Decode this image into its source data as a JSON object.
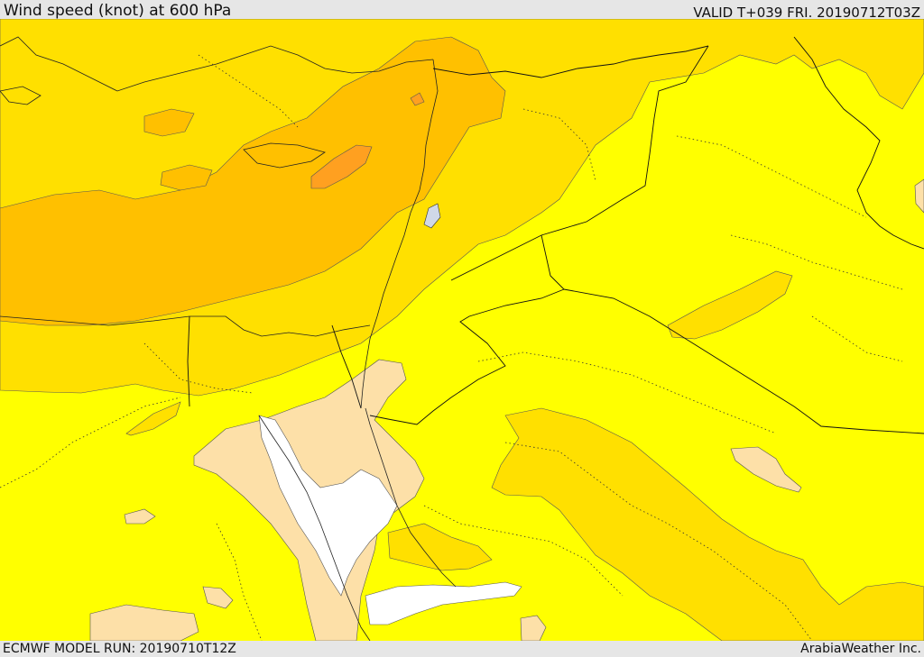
{
  "header": {
    "title": "Wind speed (knot) at 600 hPa",
    "valid": "VALID T+039 FRI. 20190712T03Z"
  },
  "footer": {
    "model_run": "ECMWF MODEL RUN: 20190710T12Z",
    "brand": "ArabiaWeather Inc."
  },
  "map": {
    "fill_colors": {
      "white": "#ffffff",
      "peach": "#fde0a8",
      "yellow": "#ffff00",
      "gold": "#ffe000",
      "amber": "#ffc000",
      "orange": "#ffa020"
    },
    "line_color": "#222222"
  }
}
